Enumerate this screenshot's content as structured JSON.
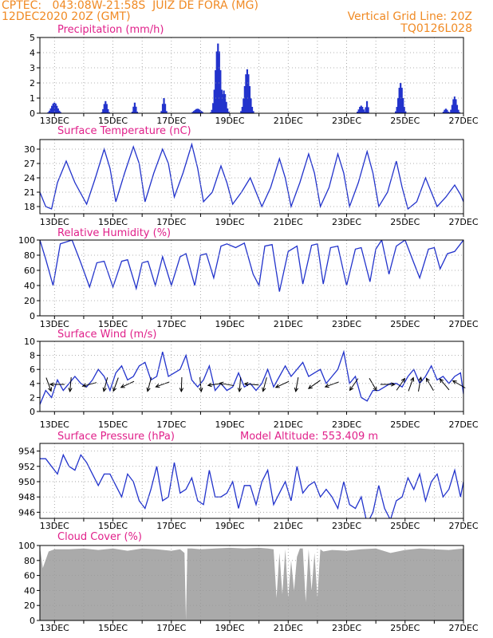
{
  "header": {
    "left_line1": "CPTEC:   043:08W-21:58S  JUIZ DE FORA (MG)",
    "left_line2": "12DEC2020 20Z (GMT)",
    "right_line1": "Vertical Grid Line: 20Z",
    "right_line2": "TQ0126L028"
  },
  "colors": {
    "header": "#f08a24",
    "title": "#e0208a",
    "series": "#2233cc",
    "cloud": "#aaaaaa",
    "grid": "#999999"
  },
  "chart_data": [
    {
      "type": "bar",
      "title": "Precipitation (mm/h)",
      "x_range": [
        12.5,
        27.0
      ],
      "ylim": [
        0,
        5
      ],
      "yticks": [
        0,
        1,
        2,
        3,
        4,
        5
      ],
      "xticks": [
        "13DEC",
        "15DEC",
        "17DEC",
        "19DEC",
        "21DEC",
        "23DEC",
        "25DEC",
        "27DEC"
      ],
      "events": [
        {
          "x": 13.0,
          "peak": 0.7,
          "width": 0.14
        },
        {
          "x": 14.75,
          "peak": 0.8,
          "width": 0.08
        },
        {
          "x": 15.75,
          "peak": 0.7,
          "width": 0.06
        },
        {
          "x": 16.75,
          "peak": 1.0,
          "width": 0.06
        },
        {
          "x": 17.9,
          "peak": 0.3,
          "width": 0.15
        },
        {
          "x": 18.6,
          "peak": 4.6,
          "width": 0.12
        },
        {
          "x": 18.8,
          "peak": 1.5,
          "width": 0.1
        },
        {
          "x": 19.6,
          "peak": 2.9,
          "width": 0.12
        },
        {
          "x": 23.5,
          "peak": 0.5,
          "width": 0.1
        },
        {
          "x": 23.7,
          "peak": 0.8,
          "width": 0.05
        },
        {
          "x": 24.85,
          "peak": 2.0,
          "width": 0.1
        },
        {
          "x": 26.4,
          "peak": 0.3,
          "width": 0.08
        },
        {
          "x": 26.7,
          "peak": 1.1,
          "width": 0.1
        }
      ]
    },
    {
      "type": "line",
      "title": "Surface Temperature (nC)",
      "x_range": [
        12.5,
        27.0
      ],
      "ylim": [
        16.5,
        32
      ],
      "yticks": [
        18,
        21,
        24,
        27,
        30
      ],
      "xticks": [
        "13DEC",
        "15DEC",
        "17DEC",
        "19DEC",
        "21DEC",
        "23DEC",
        "25DEC",
        "27DEC"
      ],
      "x": [
        12.5,
        12.7,
        12.9,
        13.1,
        13.4,
        13.7,
        14.1,
        14.4,
        14.7,
        14.9,
        15.1,
        15.4,
        15.7,
        15.9,
        16.1,
        16.4,
        16.7,
        16.9,
        17.1,
        17.4,
        17.7,
        17.9,
        18.1,
        18.4,
        18.7,
        18.9,
        19.1,
        19.4,
        19.7,
        19.9,
        20.1,
        20.4,
        20.7,
        20.9,
        21.1,
        21.4,
        21.7,
        21.9,
        22.1,
        22.4,
        22.7,
        22.9,
        23.1,
        23.4,
        23.7,
        23.9,
        24.1,
        24.4,
        24.7,
        24.9,
        25.1,
        25.4,
        25.7,
        25.9,
        26.1,
        26.4,
        26.7,
        26.9,
        27.0
      ],
      "y": [
        21,
        18,
        17.5,
        23,
        27.5,
        23,
        18.5,
        24,
        30,
        26,
        19,
        25,
        30.5,
        27,
        19,
        25,
        30,
        27,
        20,
        25,
        31,
        26,
        19,
        21,
        26.5,
        23,
        18.5,
        21,
        24,
        21,
        18,
        22,
        28,
        24,
        18,
        23,
        29,
        25,
        18,
        22,
        29,
        25,
        18,
        23,
        29.5,
        25,
        18,
        21,
        27.5,
        22,
        17.5,
        19,
        24,
        21,
        18,
        20,
        22.5,
        20.5,
        19
      ]
    },
    {
      "type": "line",
      "title": "Relative Humidity (%)",
      "x_range": [
        12.5,
        27.0
      ],
      "ylim": [
        0,
        100
      ],
      "yticks": [
        0,
        20,
        40,
        60,
        80,
        100
      ],
      "xticks": [
        "13DEC",
        "15DEC",
        "17DEC",
        "19DEC",
        "21DEC",
        "23DEC",
        "25DEC",
        "27DEC"
      ],
      "x": [
        12.5,
        12.7,
        12.95,
        13.2,
        13.6,
        13.9,
        14.2,
        14.45,
        14.7,
        15.0,
        15.3,
        15.5,
        15.8,
        16.0,
        16.2,
        16.45,
        16.7,
        17.0,
        17.3,
        17.5,
        17.8,
        18.0,
        18.2,
        18.45,
        18.7,
        18.9,
        19.2,
        19.5,
        19.8,
        20.0,
        20.2,
        20.45,
        20.7,
        21.0,
        21.3,
        21.5,
        21.8,
        22.0,
        22.2,
        22.45,
        22.7,
        23.0,
        23.3,
        23.5,
        23.8,
        24.0,
        24.2,
        24.45,
        24.7,
        25.0,
        25.3,
        25.5,
        25.8,
        26.0,
        26.2,
        26.45,
        26.7,
        27.0
      ],
      "y": [
        100,
        75,
        40,
        95,
        100,
        70,
        38,
        70,
        72,
        38,
        72,
        74,
        36,
        70,
        72,
        40,
        78,
        40,
        78,
        82,
        40,
        80,
        82,
        50,
        92,
        95,
        90,
        96,
        55,
        40,
        92,
        94,
        32,
        85,
        92,
        42,
        93,
        95,
        42,
        90,
        92,
        40,
        88,
        90,
        45,
        88,
        100,
        55,
        92,
        100,
        70,
        50,
        88,
        90,
        62,
        82,
        85,
        100
      ]
    },
    {
      "type": "line",
      "title": "Surface Wind (m/s)",
      "x_range": [
        12.5,
        27.0
      ],
      "ylim": [
        0,
        10
      ],
      "yticks": [
        0,
        2,
        4,
        6,
        8,
        10
      ],
      "xticks": [
        "13DEC",
        "15DEC",
        "17DEC",
        "19DEC",
        "21DEC",
        "23DEC",
        "25DEC",
        "27DEC"
      ],
      "x": [
        12.5,
        12.7,
        12.9,
        13.1,
        13.3,
        13.5,
        13.7,
        13.9,
        14.1,
        14.3,
        14.5,
        14.7,
        14.9,
        15.1,
        15.3,
        15.5,
        15.7,
        15.9,
        16.1,
        16.3,
        16.5,
        16.7,
        16.9,
        17.1,
        17.3,
        17.5,
        17.7,
        17.9,
        18.1,
        18.3,
        18.5,
        18.7,
        18.9,
        19.1,
        19.3,
        19.5,
        19.7,
        19.9,
        20.1,
        20.3,
        20.5,
        20.7,
        20.9,
        21.1,
        21.3,
        21.5,
        21.7,
        21.9,
        22.1,
        22.3,
        22.5,
        22.7,
        22.9,
        23.1,
        23.3,
        23.5,
        23.7,
        23.9,
        24.1,
        24.3,
        24.5,
        24.7,
        24.9,
        25.1,
        25.3,
        25.5,
        25.7,
        25.9,
        26.1,
        26.3,
        26.5,
        26.7,
        26.9,
        27.0
      ],
      "y": [
        1,
        3,
        2,
        4.5,
        3,
        4,
        5,
        4,
        3.5,
        4.5,
        6,
        5,
        3,
        5.5,
        6.5,
        4.5,
        5,
        6.5,
        7,
        4.5,
        5,
        8.5,
        5,
        5.5,
        6,
        8,
        4.5,
        3.5,
        4.5,
        6.5,
        3,
        4,
        3,
        3.5,
        5.5,
        3.5,
        4,
        3,
        4,
        6,
        3.5,
        5,
        6.5,
        5,
        6,
        7,
        5,
        5.5,
        6,
        4,
        5,
        6,
        8.5,
        4,
        5,
        2,
        1.5,
        3,
        3,
        3.5,
        4,
        4,
        3.5,
        5,
        6,
        4,
        5,
        6.5,
        4.5,
        5,
        4,
        5,
        5.5,
        2.5
      ],
      "vectors": [
        {
          "x": 12.8,
          "dir": 160
        },
        {
          "x": 13.1,
          "dir": 270
        },
        {
          "x": 13.55,
          "dir": 185
        },
        {
          "x": 14.2,
          "dir": 255
        },
        {
          "x": 14.75,
          "dir": 195
        },
        {
          "x": 15.1,
          "dir": 200
        },
        {
          "x": 15.5,
          "dir": 245
        },
        {
          "x": 16.25,
          "dir": 195
        },
        {
          "x": 16.7,
          "dir": 250
        },
        {
          "x": 17.35,
          "dir": 182
        },
        {
          "x": 18.0,
          "dir": 175
        },
        {
          "x": 18.5,
          "dir": 262
        },
        {
          "x": 18.9,
          "dir": 280
        },
        {
          "x": 19.35,
          "dir": 185
        },
        {
          "x": 19.75,
          "dir": 275
        },
        {
          "x": 20.2,
          "dir": 195
        },
        {
          "x": 20.8,
          "dir": 245
        },
        {
          "x": 21.3,
          "dir": 190
        },
        {
          "x": 21.9,
          "dir": 235
        },
        {
          "x": 22.5,
          "dir": 250
        },
        {
          "x": 23.25,
          "dir": 215
        },
        {
          "x": 23.9,
          "dir": 150
        },
        {
          "x": 24.4,
          "dir": 90
        },
        {
          "x": 24.85,
          "dir": 35
        },
        {
          "x": 25.2,
          "dir": 20
        },
        {
          "x": 25.5,
          "dir": 10
        },
        {
          "x": 25.85,
          "dir": 330
        },
        {
          "x": 26.35,
          "dir": 320
        },
        {
          "x": 26.85,
          "dir": 300
        }
      ]
    },
    {
      "type": "line",
      "title": "Surface Pressure (hPa)",
      "subtitle": "Model Altitude: 553.409 m",
      "x_range": [
        12.5,
        27.0
      ],
      "ylim": [
        945.2,
        955
      ],
      "yticks": [
        946,
        948,
        950,
        952,
        954
      ],
      "xticks": [
        "13DEC",
        "15DEC",
        "17DEC",
        "19DEC",
        "21DEC",
        "23DEC",
        "25DEC",
        "27DEC"
      ],
      "x": [
        12.5,
        12.7,
        12.9,
        13.1,
        13.3,
        13.5,
        13.7,
        13.9,
        14.1,
        14.3,
        14.5,
        14.7,
        14.9,
        15.1,
        15.3,
        15.5,
        15.7,
        15.9,
        16.1,
        16.3,
        16.5,
        16.7,
        16.9,
        17.1,
        17.3,
        17.5,
        17.7,
        17.9,
        18.1,
        18.3,
        18.5,
        18.7,
        18.9,
        19.1,
        19.3,
        19.5,
        19.7,
        19.9,
        20.1,
        20.3,
        20.5,
        20.7,
        20.9,
        21.1,
        21.3,
        21.5,
        21.7,
        21.9,
        22.1,
        22.3,
        22.5,
        22.7,
        22.9,
        23.1,
        23.3,
        23.5,
        23.7,
        23.9,
        24.1,
        24.3,
        24.5,
        24.7,
        24.9,
        25.1,
        25.3,
        25.5,
        25.7,
        25.9,
        26.1,
        26.3,
        26.5,
        26.7,
        26.9,
        27.0
      ],
      "y": [
        953,
        953,
        952,
        951,
        953.5,
        952,
        951.5,
        953.5,
        952.5,
        951,
        949.5,
        951,
        951,
        949.5,
        948,
        951,
        950,
        947.5,
        946.5,
        949,
        952,
        947.5,
        948,
        952.5,
        948.5,
        949,
        950.5,
        947.5,
        947,
        951.5,
        948,
        948,
        948.5,
        950,
        946.5,
        949.5,
        949.5,
        947,
        950,
        951.5,
        947,
        948.5,
        950,
        947.5,
        952,
        948.5,
        949.5,
        950,
        948,
        949,
        948,
        946.5,
        950,
        947,
        946.5,
        948,
        944.5,
        946,
        949.5,
        946.5,
        945,
        947.5,
        948,
        950.5,
        949,
        951,
        947.5,
        950,
        951,
        948,
        949,
        951.5,
        948,
        950
      ]
    },
    {
      "type": "area",
      "title": "Cloud Cover (%)",
      "x_range": [
        12.5,
        27.0
      ],
      "ylim": [
        0,
        100
      ],
      "yticks": [
        0,
        20,
        40,
        60,
        80,
        100
      ],
      "xticks": [
        "13DEC",
        "15DEC",
        "17DEC",
        "19DEC",
        "21DEC",
        "23DEC",
        "25DEC",
        "27DEC"
      ],
      "x": [
        12.5,
        12.6,
        12.8,
        13.0,
        13.5,
        14.0,
        14.5,
        15.0,
        15.5,
        16.0,
        16.5,
        17.0,
        17.3,
        17.45,
        17.5,
        17.55,
        17.7,
        18.0,
        18.5,
        19.0,
        19.5,
        20.0,
        20.3,
        20.5,
        20.6,
        20.7,
        20.8,
        20.9,
        21.0,
        21.1,
        21.2,
        21.3,
        21.4,
        21.5,
        21.6,
        21.7,
        21.8,
        21.9,
        22.0,
        22.1,
        22.2,
        22.5,
        23.0,
        23.5,
        24.0,
        24.5,
        25.0,
        25.5,
        26.0,
        26.5,
        27.0
      ],
      "y": [
        98,
        70,
        92,
        95,
        95,
        96,
        94,
        96,
        93,
        96,
        95,
        93,
        95,
        90,
        0,
        96,
        96,
        95,
        96,
        97,
        96,
        97,
        96,
        95,
        30,
        90,
        35,
        95,
        30,
        80,
        40,
        85,
        96,
        96,
        25,
        95,
        40,
        90,
        30,
        95,
        92,
        94,
        93,
        95,
        96,
        90,
        94,
        96,
        95,
        94,
        96
      ]
    }
  ]
}
